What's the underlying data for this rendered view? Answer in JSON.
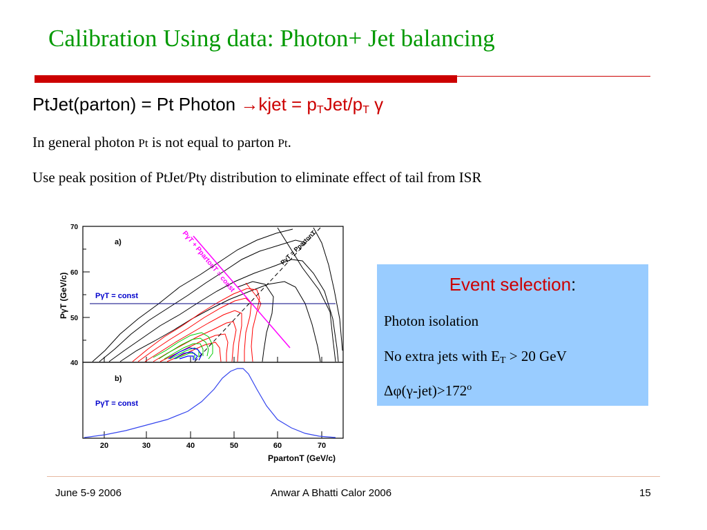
{
  "slide": {
    "title": "Calibration Using data: Photon+ Jet balancing",
    "line1": {
      "prefix": "PtJet(parton) = Pt Photon ",
      "arrow_part": "→kjet = p",
      "sub1": "T",
      "middle": "Jet/p",
      "sub2": "T",
      "gamma": " γ"
    },
    "line2": {
      "part1": "In general photon ",
      "pt1": "Pt",
      "part2": " is not equal to parton ",
      "pt2": "Pt",
      "part3": "."
    },
    "line3": "Use peak position of PtJet/Ptγ distribution to eliminate effect of tail from ISR"
  },
  "figure": {
    "panel_a_label": "a)",
    "panel_b_label": "b)",
    "const_label_a": "PγT = const",
    "const_label_b": "PγT = const",
    "diag_label_1": "PγT + PpartonT = const",
    "diag_label_2": "PγT = PpartonT",
    "x_axis_label": "PpartonT (GeV/c)",
    "y_axis_label": "PγT (GeV/c)",
    "y_ticks": [
      "70",
      "60",
      "50",
      "40"
    ],
    "x_ticks": [
      "20",
      "30",
      "40",
      "50",
      "60",
      "70"
    ]
  },
  "event_selection": {
    "title": "Event selection",
    "colon": ":",
    "item1": "Photon isolation",
    "item2_prefix": "No extra jets with E",
    "item2_sub": "T",
    "item2_suffix": " > 20 GeV",
    "item3_prefix": "Δφ(γ-jet)>172",
    "item3_sup": "o"
  },
  "footer": {
    "left": "June 5-9 2006",
    "center": "Anwar A Bhatti  Calor 2006",
    "right": "15"
  },
  "colors": {
    "title": "#009900",
    "rule": "#cc0000",
    "accent_red": "#cc0000",
    "box_bg": "#99ccff",
    "contour_black": "#000000",
    "contour_red": "#ff0000",
    "contour_green": "#00cc00",
    "contour_blue": "#0000ff",
    "diag_line": "#ff00ff"
  }
}
